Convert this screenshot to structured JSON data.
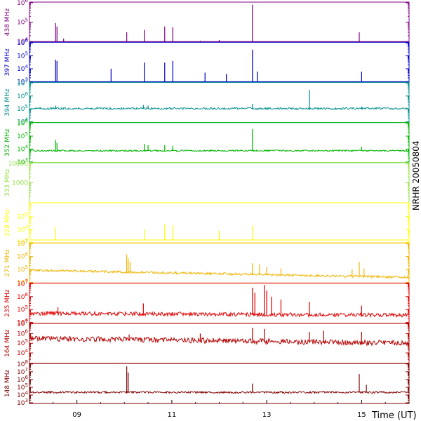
{
  "page": {
    "station_label": "NRHR 20050804",
    "time_label": "Time (UT)"
  },
  "chart_data": {
    "type": "line",
    "title": "",
    "xlabel": "Time (UT)",
    "x_unit": "hour UT",
    "x_range": [
      8.0,
      16.0
    ],
    "x_ticks": [
      {
        "value": 9,
        "label": "09"
      },
      {
        "value": 11,
        "label": "11"
      },
      {
        "value": 13,
        "label": "13"
      },
      {
        "value": 15,
        "label": "15"
      }
    ],
    "grid": false,
    "y_scale": "log",
    "panels": [
      {
        "name": "438 MHz",
        "color": "#800080",
        "ylim": [
          10000,
          1000000
        ],
        "y_ticks": [
          {
            "value": 10000,
            "label": "10^4"
          },
          {
            "value": 100000,
            "label": "10^5"
          },
          {
            "value": 1000000,
            "label": "10^6"
          }
        ],
        "baseline": 10000,
        "noise": 0.0,
        "trend": 0.0,
        "spikes": [
          [
            8.55,
            90000
          ],
          [
            8.58,
            60000
          ],
          [
            8.72,
            14000
          ],
          [
            10.05,
            30000
          ],
          [
            10.42,
            40000
          ],
          [
            10.85,
            60000
          ],
          [
            11.02,
            55000
          ],
          [
            12.7,
            800000
          ],
          [
            14.95,
            30000
          ],
          [
            12.0,
            12000
          ],
          [
            11.6,
            11000
          ]
        ]
      },
      {
        "name": "397 MHz",
        "color": "#0000c8",
        "ylim": [
          1000,
          1000000
        ],
        "y_ticks": [
          {
            "value": 1000,
            "label": "10^3"
          },
          {
            "value": 10000,
            "label": "10^4"
          },
          {
            "value": 100000,
            "label": "10^5"
          },
          {
            "value": 1000000,
            "label": "10^6"
          }
        ],
        "baseline": 1000,
        "noise": 0.0,
        "trend": 0.0,
        "spikes": [
          [
            8.55,
            50000
          ],
          [
            8.58,
            40000
          ],
          [
            9.72,
            10000
          ],
          [
            10.42,
            30000
          ],
          [
            10.85,
            30000
          ],
          [
            11.02,
            40000
          ],
          [
            12.7,
            300000
          ],
          [
            12.8,
            6000
          ],
          [
            15.0,
            6000
          ],
          [
            11.7,
            5000
          ],
          [
            12.15,
            4000
          ]
        ]
      },
      {
        "name": "394 MHz",
        "color": "#008c8c",
        "ylim": [
          10000,
          10000000
        ],
        "y_ticks": [
          {
            "value": 10000,
            "label": "10^4"
          },
          {
            "value": 100000,
            "label": "10^5"
          },
          {
            "value": 1000000,
            "label": "10^6"
          },
          {
            "value": 10000000,
            "label": "10^7"
          }
        ],
        "baseline": 100000,
        "noise": 0.15,
        "trend": 0.0,
        "spikes": [
          [
            8.55,
            180000
          ],
          [
            10.4,
            200000
          ],
          [
            10.5,
            180000
          ],
          [
            12.7,
            250000
          ],
          [
            13.9,
            3000000
          ],
          [
            15.0,
            150000
          ]
        ]
      },
      {
        "name": "352 MHz",
        "color": "#00b400",
        "ylim": [
          1000,
          1000000
        ],
        "y_ticks": [
          {
            "value": 1000,
            "label": "10^3"
          },
          {
            "value": 10000,
            "label": "10^4"
          },
          {
            "value": 100000,
            "label": "10^5"
          },
          {
            "value": 1000000,
            "label": "10^6"
          }
        ],
        "baseline": 7000,
        "noise": 0.12,
        "trend": 0.0,
        "spikes": [
          [
            8.55,
            50000
          ],
          [
            8.58,
            30000
          ],
          [
            10.42,
            25000
          ],
          [
            10.5,
            20000
          ],
          [
            10.85,
            20000
          ],
          [
            11.02,
            18000
          ],
          [
            12.7,
            350000
          ],
          [
            15.0,
            15000
          ]
        ]
      },
      {
        "name": "333 MHz",
        "color": "#90e040",
        "ylim": [
          100,
          10000
        ],
        "y_ticks": [
          {
            "value": 1000,
            "label": "1000"
          },
          {
            "value": 10000,
            "label": "10000"
          }
        ],
        "baseline": null,
        "noise": 0.0,
        "trend": 0.0,
        "spikes": []
      },
      {
        "name": "328 MHz",
        "color": "#ffff00",
        "ylim": [
          1000,
          1000000
        ],
        "y_ticks": [
          {
            "value": 1000,
            "label": "10^3"
          },
          {
            "value": 10000,
            "label": "10^4"
          },
          {
            "value": 100000,
            "label": "10^5"
          }
        ],
        "baseline": 1500,
        "noise": 0.0,
        "trend": 0.0,
        "spikes": [
          [
            8.55,
            15000
          ],
          [
            10.42,
            10000
          ],
          [
            10.85,
            25000
          ],
          [
            11.02,
            20000
          ],
          [
            12.7,
            20000
          ],
          [
            12.0,
            8000
          ]
        ]
      },
      {
        "name": "271 MHz",
        "color": "#f0b400",
        "ylim": [
          10000,
          10000000
        ],
        "y_ticks": [
          {
            "value": 10000,
            "label": "10^4"
          },
          {
            "value": 100000,
            "label": "10^5"
          },
          {
            "value": 1000000,
            "label": "10^6"
          },
          {
            "value": 10000000,
            "label": "10^7"
          }
        ],
        "baseline": 80000,
        "noise": 0.18,
        "trend": -0.55,
        "spikes": [
          [
            10.05,
            1500000
          ],
          [
            10.08,
            700000
          ],
          [
            10.12,
            400000
          ],
          [
            12.7,
            300000
          ],
          [
            12.85,
            250000
          ],
          [
            13.0,
            150000
          ],
          [
            13.3,
            120000
          ],
          [
            14.95,
            400000
          ],
          [
            15.05,
            120000
          ],
          [
            14.8,
            100000
          ]
        ]
      },
      {
        "name": "235 MHz",
        "color": "#e00000",
        "ylim": [
          10000,
          10000000
        ],
        "y_ticks": [
          {
            "value": 10000,
            "label": "10^4"
          },
          {
            "value": 100000,
            "label": "10^5"
          },
          {
            "value": 1000000,
            "label": "10^6"
          },
          {
            "value": 10000000,
            "label": "10^7"
          }
        ],
        "baseline": 45000,
        "noise": 0.3,
        "trend": -0.15,
        "spikes": [
          [
            12.7,
            5000000
          ],
          [
            12.75,
            2000000
          ],
          [
            12.95,
            8000000
          ],
          [
            13.0,
            3000000
          ],
          [
            13.1,
            1000000
          ],
          [
            13.3,
            600000
          ],
          [
            13.9,
            400000
          ],
          [
            10.4,
            300000
          ],
          [
            8.6,
            150000
          ],
          [
            15.0,
            200000
          ]
        ]
      },
      {
        "name": "164 MHz",
        "color": "#b40000",
        "ylim": [
          1000,
          10000000
        ],
        "y_ticks": [
          {
            "value": 10000,
            "label": "10^4"
          },
          {
            "value": 100000,
            "label": "10^5"
          },
          {
            "value": 1000000,
            "label": "10^6"
          },
          {
            "value": 10000000,
            "label": "10^7"
          }
        ],
        "baseline": 250000,
        "noise": 0.55,
        "trend": -0.5,
        "spikes": [
          [
            12.7,
            4000000
          ],
          [
            12.95,
            3000000
          ],
          [
            14.2,
            2000000
          ],
          [
            13.9,
            1500000
          ],
          [
            11.6,
            1000000
          ],
          [
            15.0,
            1500000
          ],
          [
            10.1,
            800000
          ]
        ]
      },
      {
        "name": "148 MHz",
        "color": "#800000",
        "ylim": [
          1000,
          100000000
        ],
        "y_ticks": [
          {
            "value": 1000,
            "label": "10^3"
          },
          {
            "value": 10000,
            "label": "10^4"
          },
          {
            "value": 100000,
            "label": "10^5"
          },
          {
            "value": 1000000,
            "label": "10^6"
          },
          {
            "value": 10000000,
            "label": "10^7"
          },
          {
            "value": 100000000,
            "label": "10^8"
          }
        ],
        "baseline": 20000,
        "noise": 0.25,
        "trend": 0.0,
        "spikes": [
          [
            10.05,
            50000000
          ],
          [
            10.08,
            8000000
          ],
          [
            12.7,
            300000
          ],
          [
            14.95,
            5000000
          ],
          [
            15.1,
            200000
          ]
        ]
      }
    ]
  }
}
